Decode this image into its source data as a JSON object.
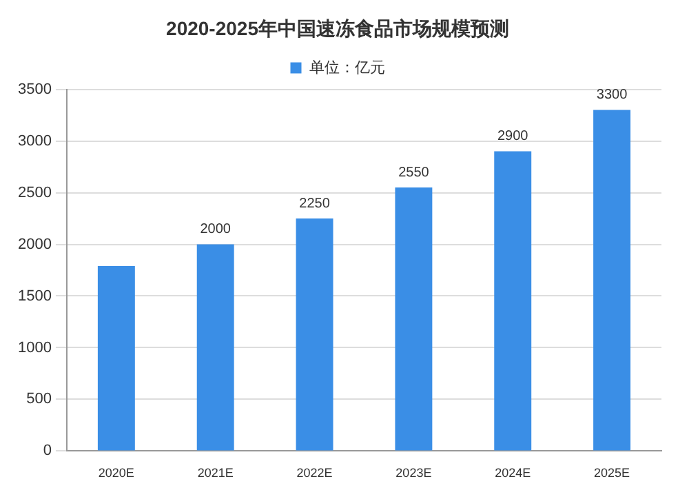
{
  "chart_data": {
    "type": "bar",
    "title": "2020-2025年中国速冻食品市场规模预测",
    "categories": [
      "2020E",
      "2021E",
      "2022E",
      "2023E",
      "2024E",
      "2025E"
    ],
    "series": [
      {
        "name": "单位：亿元",
        "color": "#3a8ee6",
        "values": [
          1790,
          2000,
          2250,
          2550,
          2900,
          3300
        ],
        "value_labels": [
          null,
          "2000",
          "2250",
          "2550",
          "2900",
          "3300"
        ]
      }
    ],
    "ylim": [
      0,
      3500
    ],
    "yticks": [
      0,
      500,
      1000,
      1500,
      2000,
      2500,
      3000,
      3500
    ],
    "grid": "y",
    "legend": "top"
  }
}
